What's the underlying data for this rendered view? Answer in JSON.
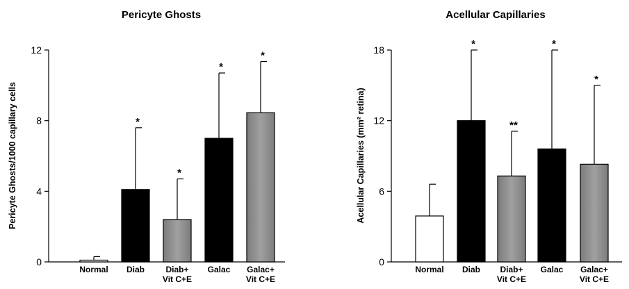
{
  "chart_data": [
    {
      "type": "bar",
      "title": "Pericyte Ghosts",
      "xlabel": "",
      "ylabel": "Pericyte Ghosts/1000 capillary cells",
      "ylim": [
        0,
        12
      ],
      "yticks": [
        "0",
        "4",
        "8",
        "12"
      ],
      "categories": [
        [
          "Normal"
        ],
        [
          "Diab"
        ],
        [
          "Diab+",
          "Vit C+E"
        ],
        [
          "Galac"
        ],
        [
          "Galac+",
          "Vit C+E"
        ]
      ],
      "values": [
        0.1,
        4.1,
        2.4,
        7.0,
        8.45
      ],
      "errors": [
        0.2,
        3.5,
        2.3,
        3.7,
        2.9
      ],
      "significance": [
        "",
        "*",
        "*",
        "*",
        "*"
      ],
      "bar_colors": [
        "#ffffff",
        "#000000",
        "#8a8a8a",
        "#000000",
        "#8a8a8a"
      ]
    },
    {
      "type": "bar",
      "title": "Acellular Capillaries",
      "xlabel": "",
      "ylabel": "Acellular Capillaries (mm² retina)",
      "ylim": [
        0,
        18
      ],
      "yticks": [
        "0",
        "6",
        "12",
        "18"
      ],
      "categories": [
        [
          "Normal"
        ],
        [
          "Diab"
        ],
        [
          "Diab+",
          "Vit C+E"
        ],
        [
          "Galac"
        ],
        [
          "Galac+",
          "Vit C+E"
        ]
      ],
      "values": [
        3.9,
        12.0,
        7.3,
        9.6,
        8.3
      ],
      "errors": [
        2.7,
        6.0,
        3.8,
        8.4,
        6.7
      ],
      "significance": [
        "",
        "*",
        "**",
        "*",
        "*"
      ],
      "bar_colors": [
        "#ffffff",
        "#000000",
        "#8a8a8a",
        "#000000",
        "#8a8a8a"
      ]
    }
  ]
}
